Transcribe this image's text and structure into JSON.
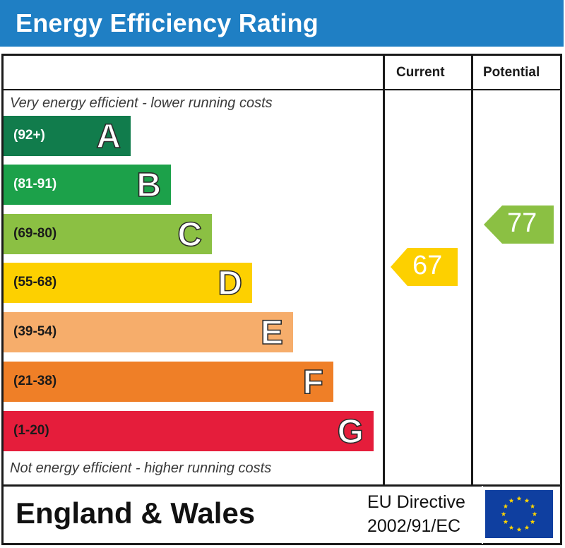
{
  "title": "Energy Efficiency Rating",
  "columns": {
    "current": "Current",
    "potential": "Potential"
  },
  "captions": {
    "top": "Very energy efficient - lower running costs",
    "bottom": "Not energy efficient - higher running costs"
  },
  "bands": [
    {
      "range": "(92+)",
      "letter": "A",
      "color": "#117c4c"
    },
    {
      "range": "(81-91)",
      "letter": "B",
      "color": "#1ca14a"
    },
    {
      "range": "(69-80)",
      "letter": "C",
      "color": "#8bc043"
    },
    {
      "range": "(55-68)",
      "letter": "D",
      "color": "#fdd000"
    },
    {
      "range": "(39-54)",
      "letter": "E",
      "color": "#f6ad6b"
    },
    {
      "range": "(21-38)",
      "letter": "F",
      "color": "#ef7f27"
    },
    {
      "range": "(1-20)",
      "letter": "G",
      "color": "#e51d3b"
    }
  ],
  "ratings": {
    "current": {
      "value": "67",
      "band": "D",
      "color": "#fdd000"
    },
    "potential": {
      "value": "77",
      "band": "C",
      "color": "#8bc043"
    }
  },
  "footer": {
    "region": "England & Wales",
    "directive_line1": "EU Directive",
    "directive_line2": "2002/91/EC"
  },
  "icons": {
    "eu_flag": "eu-flag-icon"
  }
}
